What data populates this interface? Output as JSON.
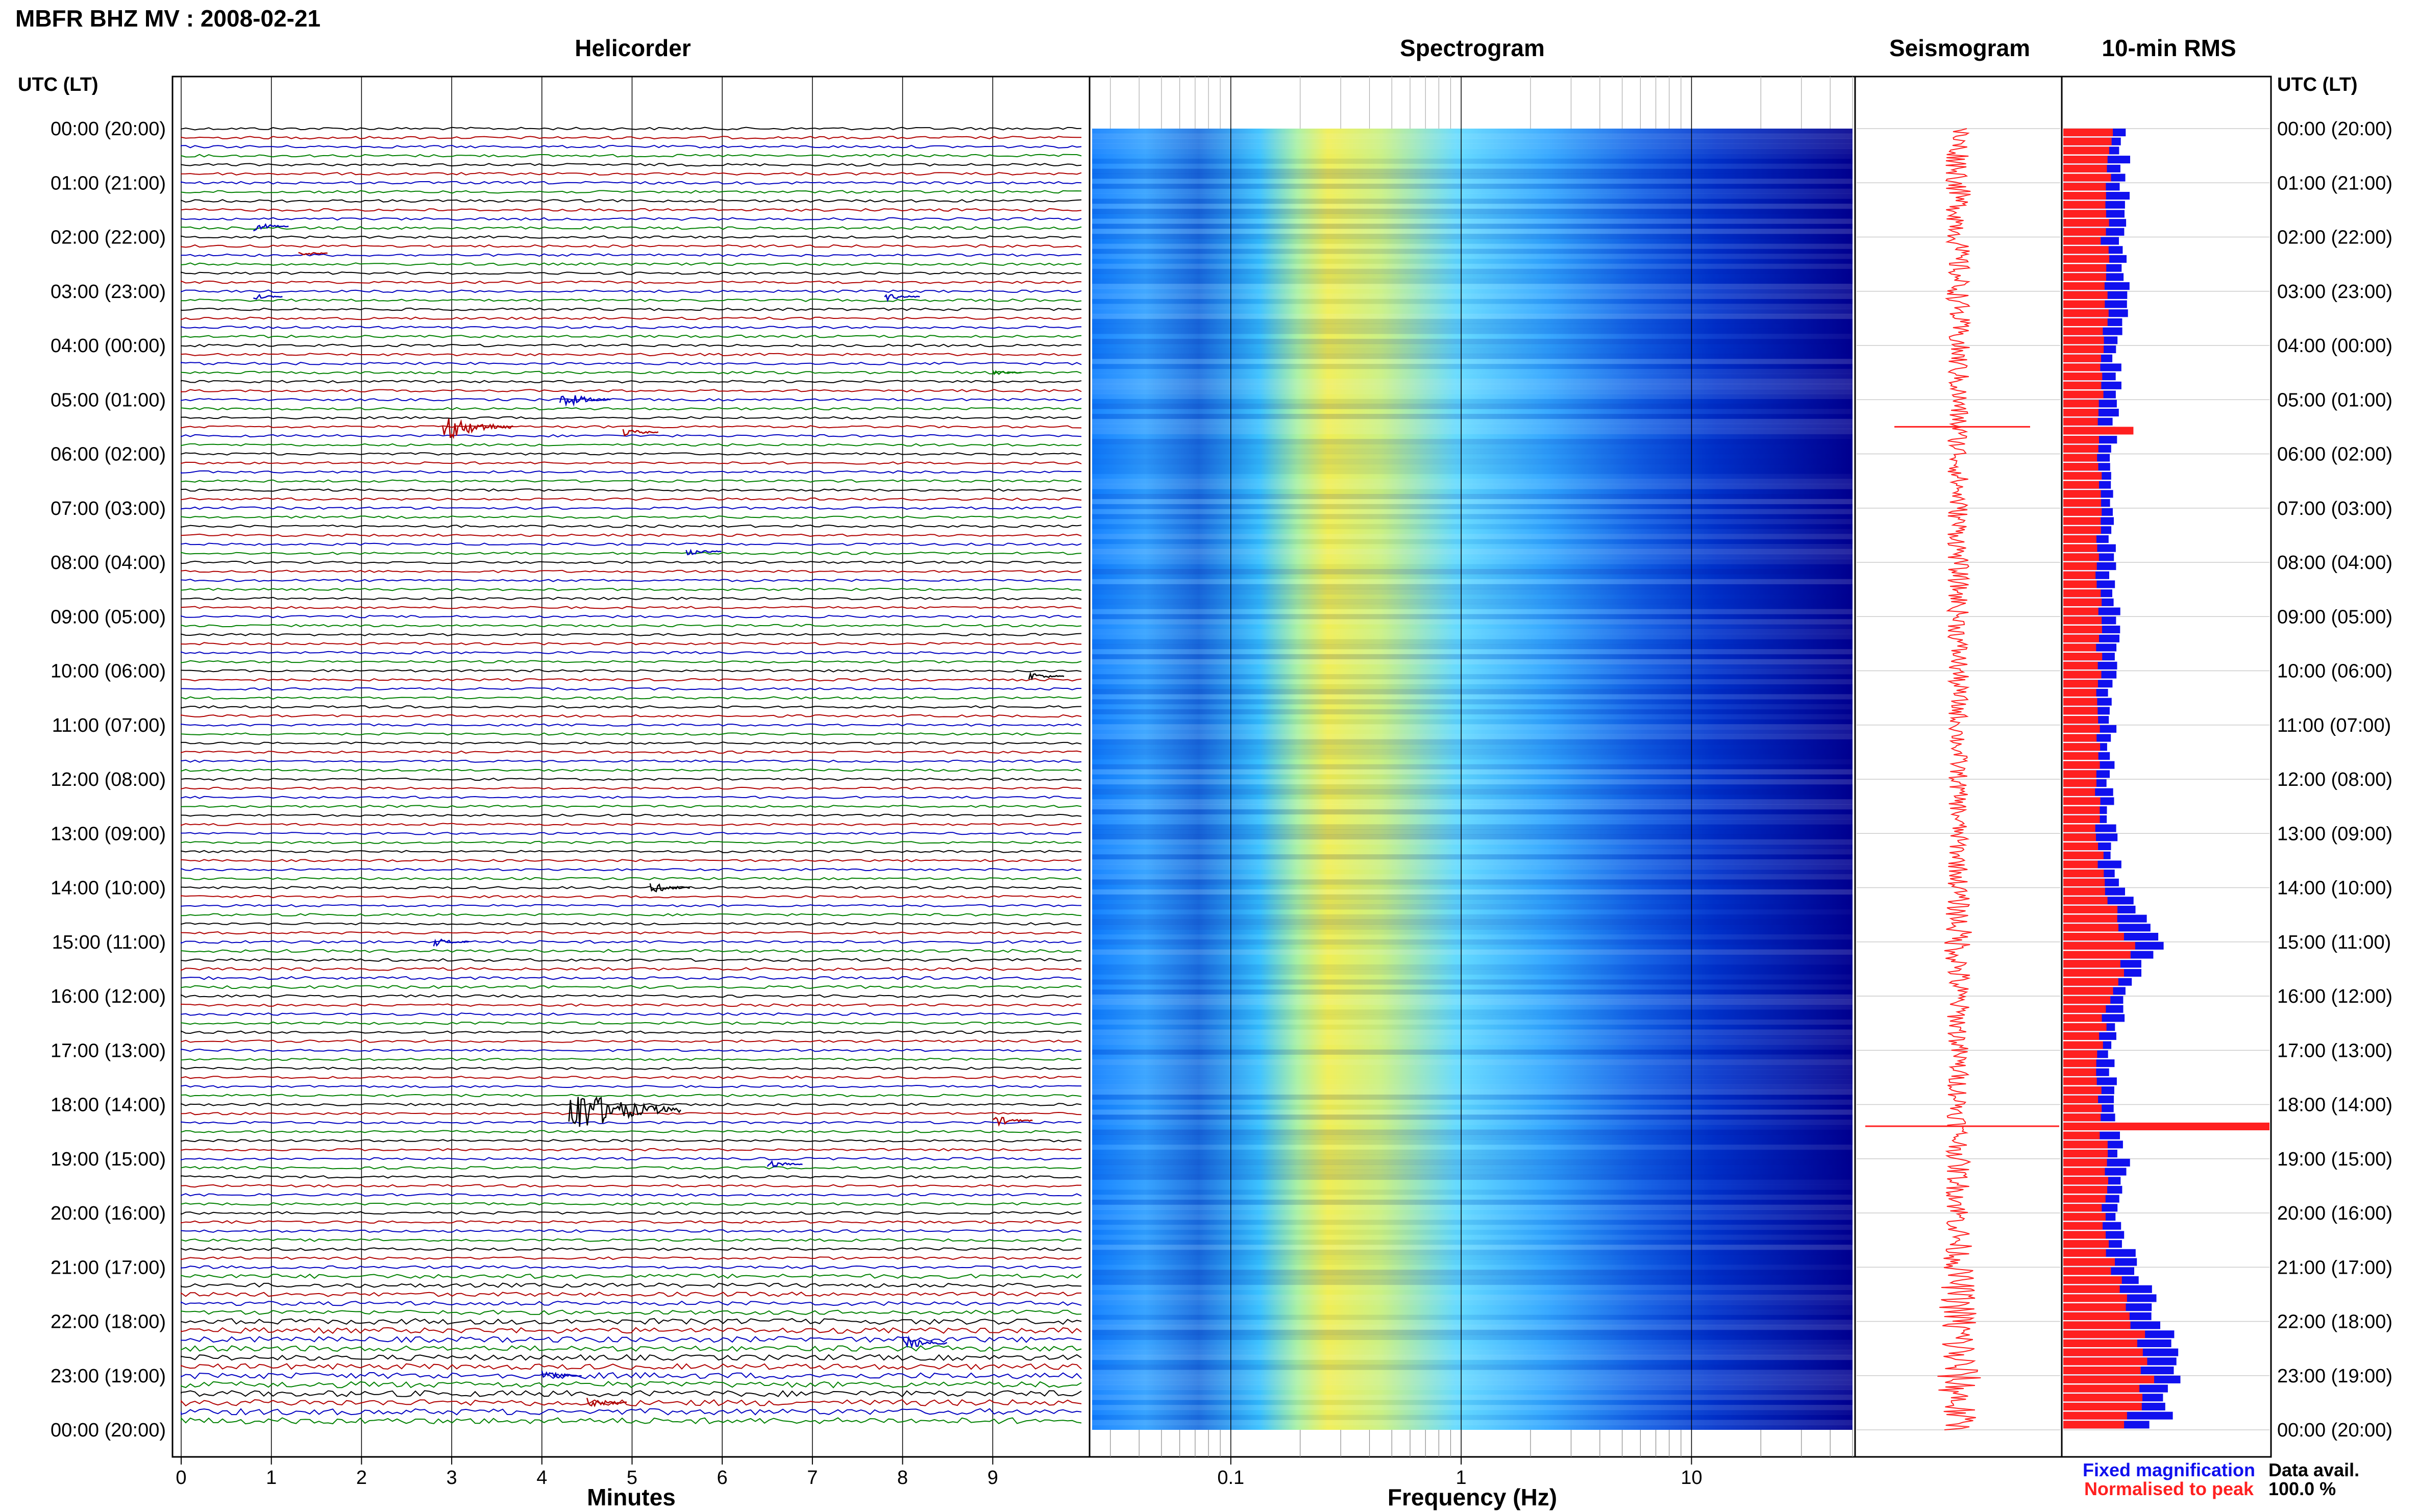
{
  "header": {
    "station_title": "MBFR BHZ MV : 2008-02-21",
    "time_axis_label": "UTC (LT)"
  },
  "panels": {
    "helicorder": {
      "title": "Helicorder",
      "xlabel": "Minutes"
    },
    "spectrogram": {
      "title": "Spectrogram",
      "xlabel": "Frequency (Hz)"
    },
    "seismogram": {
      "title": "Seismogram"
    },
    "rms": {
      "title": "10-min RMS"
    }
  },
  "legend": {
    "fixed": "Fixed magnification",
    "normalised": "Normalised to peak",
    "fixed_color": "#1010ee",
    "normalised_color": "#ff2020"
  },
  "data_avail": {
    "label": "Data avail.",
    "value": "100.0 %"
  },
  "chart_data": [
    {
      "type": "line",
      "panel": "helicorder",
      "title": "Helicorder",
      "xlabel": "Minutes",
      "x_ticks": [
        "0",
        "1",
        "2",
        "3",
        "4",
        "5",
        "6",
        "7",
        "8",
        "9"
      ],
      "xlim": [
        0,
        10
      ],
      "hour_labels": [
        "00:00 (20:00)",
        "01:00 (21:00)",
        "02:00 (22:00)",
        "03:00 (23:00)",
        "04:00 (00:00)",
        "05:00 (01:00)",
        "06:00 (02:00)",
        "07:00 (03:00)",
        "08:00 (04:00)",
        "09:00 (05:00)",
        "10:00 (06:00)",
        "11:00 (07:00)",
        "12:00 (08:00)",
        "13:00 (09:00)",
        "14:00 (10:00)",
        "15:00 (11:00)",
        "16:00 (12:00)",
        "17:00 (13:00)",
        "18:00 (14:00)",
        "19:00 (15:00)",
        "20:00 (16:00)",
        "21:00 (17:00)",
        "22:00 (18:00)",
        "23:00 (19:00)",
        "00:00 (20:00)"
      ],
      "trace_colors": [
        "#000000",
        "#b00000",
        "#0000c0",
        "#008000"
      ],
      "lines_per_hour": 6,
      "events": [
        {
          "hour": 1.8,
          "minute": 0.8,
          "amp": 3
        },
        {
          "hour": 2.3,
          "minute": 1.3,
          "amp": 2
        },
        {
          "hour": 3.1,
          "minute": 0.8,
          "amp": 2
        },
        {
          "hour": 3.1,
          "minute": 7.8,
          "amp": 3
        },
        {
          "hour": 4.5,
          "minute": 9.0,
          "amp": 2
        },
        {
          "hour": 5.0,
          "minute": 4.2,
          "amp": 6
        },
        {
          "hour": 5.5,
          "minute": 2.9,
          "amp": 10
        },
        {
          "hour": 5.6,
          "minute": 4.9,
          "amp": 3
        },
        {
          "hour": 7.8,
          "minute": 5.6,
          "amp": 3
        },
        {
          "hour": 10.1,
          "minute": 9.4,
          "amp": 3
        },
        {
          "hour": 14.0,
          "minute": 5.2,
          "amp": 4
        },
        {
          "hour": 15.0,
          "minute": 2.8,
          "amp": 3
        },
        {
          "hour": 18.1,
          "minute": 4.3,
          "amp": 18
        },
        {
          "hour": 18.3,
          "minute": 9.0,
          "amp": 4
        },
        {
          "hour": 19.1,
          "minute": 6.5,
          "amp": 3
        },
        {
          "hour": 22.4,
          "minute": 8.0,
          "amp": 5
        },
        {
          "hour": 23.0,
          "minute": 4.0,
          "amp": 4
        },
        {
          "hour": 23.5,
          "minute": 4.5,
          "amp": 4
        }
      ]
    },
    {
      "type": "heatmap",
      "panel": "spectrogram",
      "title": "Spectrogram",
      "xlabel": "Frequency (Hz)",
      "x_scale": "log",
      "xlim": [
        0.025,
        50
      ],
      "x_ticks": [
        {
          "value": 0.1,
          "label": "0.1"
        },
        {
          "value": 1,
          "label": "1"
        },
        {
          "value": 10,
          "label": "10"
        }
      ],
      "peak_frequency_hz": 0.3,
      "colormap": [
        "#00008f",
        "#0033cc",
        "#0f7fff",
        "#33bfff",
        "#5fd9ff",
        "#a6f0a0",
        "#e6f04d",
        "#f5e030"
      ]
    },
    {
      "type": "line",
      "panel": "seismogram",
      "title": "Seismogram",
      "note": "hourly amplitude envelope, relative units (0-1)",
      "hour_values": [
        0.12,
        0.12,
        0.11,
        0.11,
        0.11,
        0.1,
        0.1,
        0.1,
        0.1,
        0.1,
        0.1,
        0.09,
        0.09,
        0.09,
        0.1,
        0.14,
        0.11,
        0.1,
        0.1,
        0.11,
        0.12,
        0.14,
        0.2,
        0.22,
        0.16
      ],
      "spikes": [
        {
          "hour": 5.5,
          "amp": 0.7
        },
        {
          "hour": 18.4,
          "amp": 1.0
        }
      ]
    },
    {
      "type": "bar",
      "panel": "rms",
      "title": "10-min RMS",
      "xlim": [
        0,
        1
      ],
      "series": [
        {
          "name": "Fixed magnification",
          "color": "#1010ee",
          "hour_values": [
            0.3,
            0.3,
            0.28,
            0.3,
            0.26,
            0.26,
            0.24,
            0.24,
            0.24,
            0.26,
            0.24,
            0.24,
            0.22,
            0.24,
            0.28,
            0.48,
            0.3,
            0.24,
            0.24,
            0.3,
            0.28,
            0.34,
            0.5,
            0.58,
            0.44
          ]
        },
        {
          "name": "Normalised to peak",
          "color": "#ff2020",
          "hour_values": [
            0.22,
            0.22,
            0.2,
            0.22,
            0.18,
            0.18,
            0.17,
            0.17,
            0.17,
            0.18,
            0.17,
            0.17,
            0.16,
            0.17,
            0.2,
            0.34,
            0.22,
            0.17,
            0.17,
            0.22,
            0.2,
            0.24,
            0.36,
            0.42,
            0.3
          ]
        }
      ],
      "spikes": [
        {
          "hour": 5.5,
          "name": "Normalised to peak",
          "value": 0.34
        },
        {
          "hour": 18.4,
          "name": "Normalised to peak",
          "value": 1.0
        }
      ]
    }
  ]
}
